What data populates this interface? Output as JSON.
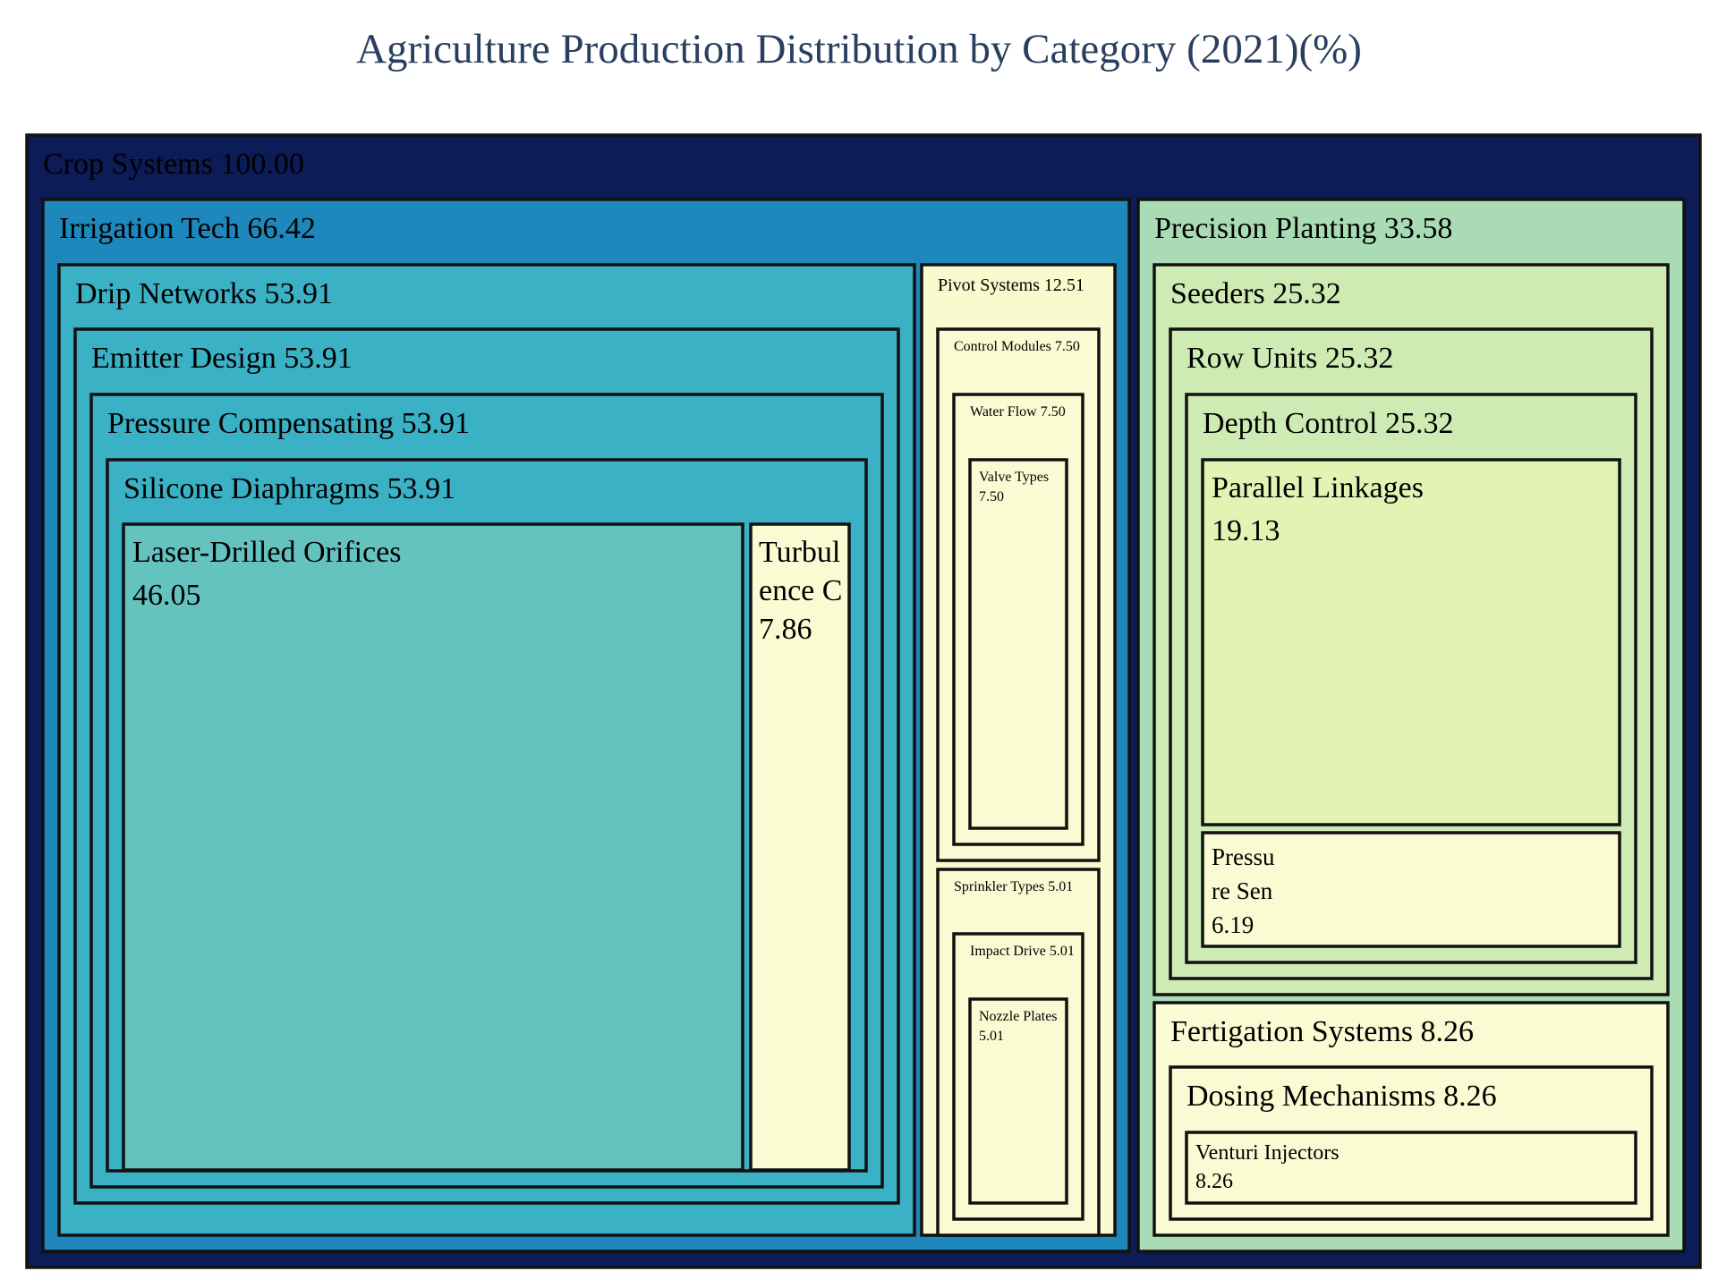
{
  "chart_data": {
    "type": "treemap",
    "title": "Agriculture Production Distribution by Category (2021)(%)",
    "unit": "%",
    "root": {
      "name": "Crop Systems",
      "value": 100.0,
      "children": [
        {
          "name": "Irrigation Tech",
          "value": 66.42,
          "children": [
            {
              "name": "Drip Networks",
              "value": 53.91,
              "children": [
                {
                  "name": "Emitter Design",
                  "value": 53.91,
                  "children": [
                    {
                      "name": "Pressure Compensating",
                      "value": 53.91,
                      "children": [
                        {
                          "name": "Silicone Diaphragms",
                          "value": 53.91,
                          "children": [
                            {
                              "name": "Laser-Drilled Orifices",
                              "value": 46.05
                            },
                            {
                              "name": "Turbulence C",
                              "value": 7.86
                            }
                          ]
                        }
                      ]
                    }
                  ]
                }
              ]
            },
            {
              "name": "Pivot Systems",
              "value": 12.51,
              "children": [
                {
                  "name": "Control Modules",
                  "value": 7.5,
                  "children": [
                    {
                      "name": "Water Flow",
                      "value": 7.5,
                      "children": [
                        {
                          "name": "Valve Types",
                          "value": 7.5
                        }
                      ]
                    }
                  ]
                },
                {
                  "name": "Sprinkler Types",
                  "value": 5.01,
                  "children": [
                    {
                      "name": "Impact Drive",
                      "value": 5.01,
                      "children": [
                        {
                          "name": "Nozzle Plates",
                          "value": 5.01
                        }
                      ]
                    }
                  ]
                }
              ]
            }
          ]
        },
        {
          "name": "Precision Planting",
          "value": 33.58,
          "children": [
            {
              "name": "Seeders",
              "value": 25.32,
              "children": [
                {
                  "name": "Row Units",
                  "value": 25.32,
                  "children": [
                    {
                      "name": "Depth Control",
                      "value": 25.32,
                      "children": [
                        {
                          "name": "Parallel Linkages",
                          "value": 19.13
                        },
                        {
                          "name": "Pressure Sen",
                          "value": 6.19
                        }
                      ]
                    }
                  ]
                }
              ]
            },
            {
              "name": "Fertigation Systems",
              "value": 8.26,
              "children": [
                {
                  "name": "Dosing Mechanisms",
                  "value": 8.26,
                  "children": [
                    {
                      "name": "Venturi Injectors",
                      "value": 8.26
                    }
                  ]
                }
              ]
            }
          ]
        }
      ]
    },
    "colorscale": [
      "#081d58",
      "#253494",
      "#225ea8",
      "#1d91c0",
      "#41b6c4",
      "#7fcdbb",
      "#c7e9b4",
      "#edf8b1",
      "#ffffd9"
    ]
  }
}
